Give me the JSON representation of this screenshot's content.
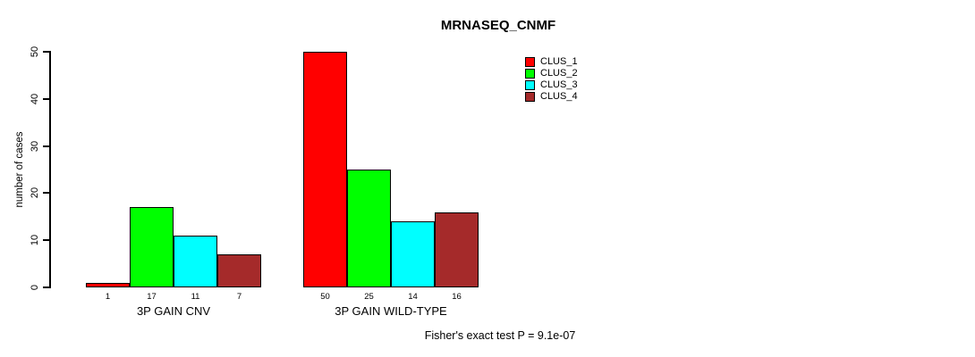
{
  "chart_data": {
    "type": "bar",
    "title": "MRNASEQ_CNMF",
    "xlabel": "",
    "ylabel": "number of cases",
    "ylim": [
      0,
      50
    ],
    "yticks": [
      0,
      10,
      20,
      30,
      40,
      50
    ],
    "grid": false,
    "legend_position": "top-right-inside",
    "categories": [
      "3P GAIN CNV",
      "3P GAIN WILD-TYPE"
    ],
    "series": [
      {
        "name": "CLUS_1",
        "color": "#FF0000",
        "values": [
          1,
          50
        ]
      },
      {
        "name": "CLUS_2",
        "color": "#00FF00",
        "values": [
          17,
          25
        ]
      },
      {
        "name": "CLUS_3",
        "color": "#00FFFF",
        "values": [
          11,
          14
        ]
      },
      {
        "name": "CLUS_4",
        "color": "#A52A2A",
        "values": [
          7,
          16
        ]
      }
    ],
    "value_labels": [
      [
        "1",
        "17",
        "11",
        "7"
      ],
      [
        "50",
        "25",
        "14",
        "16"
      ]
    ],
    "annotation": "Fisher's exact test P = 9.1e-07"
  }
}
